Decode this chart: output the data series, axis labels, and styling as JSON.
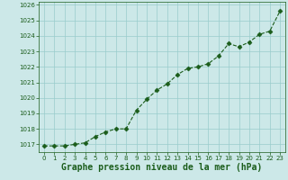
{
  "x": [
    0,
    1,
    2,
    3,
    4,
    5,
    6,
    7,
    8,
    9,
    10,
    11,
    12,
    13,
    14,
    15,
    16,
    17,
    18,
    19,
    20,
    21,
    22,
    23
  ],
  "y": [
    1016.9,
    1016.9,
    1016.9,
    1017.0,
    1017.1,
    1017.5,
    1017.8,
    1018.0,
    1018.0,
    1019.2,
    1019.9,
    1020.5,
    1020.9,
    1021.5,
    1021.9,
    1022.0,
    1022.2,
    1022.7,
    1023.5,
    1023.3,
    1023.6,
    1024.1,
    1024.3,
    1025.6
  ],
  "ylim": [
    1016.5,
    1026.2
  ],
  "xlim": [
    -0.5,
    23.5
  ],
  "yticks": [
    1017,
    1018,
    1019,
    1020,
    1021,
    1022,
    1023,
    1024,
    1025,
    1026
  ],
  "xticks": [
    0,
    1,
    2,
    3,
    4,
    5,
    6,
    7,
    8,
    9,
    10,
    11,
    12,
    13,
    14,
    15,
    16,
    17,
    18,
    19,
    20,
    21,
    22,
    23
  ],
  "line_color": "#1a5c1a",
  "marker_color": "#1a5c1a",
  "bg_color": "#cce8e8",
  "grid_color": "#99cccc",
  "xlabel": "Graphe pression niveau de la mer (hPa)",
  "xlabel_color": "#1a5c1a",
  "tick_color": "#1a5c1a",
  "tick_fontsize": 5.0,
  "xlabel_fontsize": 7.0,
  "marker_size": 2.5,
  "line_width": 0.8
}
